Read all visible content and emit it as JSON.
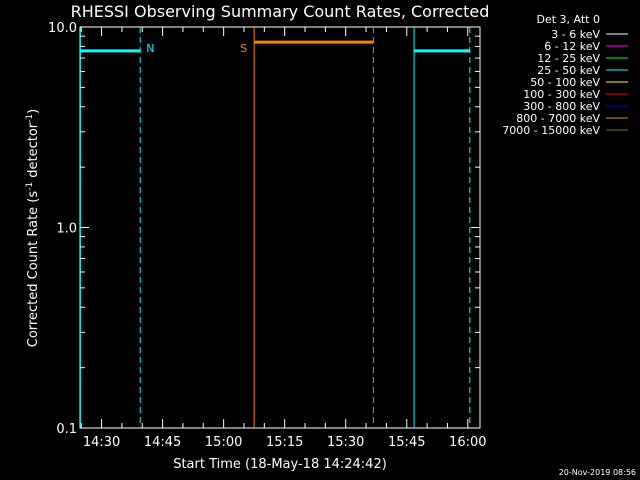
{
  "chart_data": {
    "type": "line",
    "title": "RHESSI Observing Summary Count Rates, Corrected",
    "xlabel": "Start Time (18-May-18 14:24:42)",
    "ylabel_main": "Corrected Count Rate (s",
    "ylabel_sup1": "-1",
    "ylabel_mid": " detector",
    "ylabel_sup2": "-1",
    "ylabel_end": ")",
    "yscale": "log",
    "ylim": [
      0.1,
      10.0
    ],
    "xlim_minutes": [
      864.7,
      963
    ],
    "x_ticks": [
      {
        "minutes": 870,
        "label": "14:30"
      },
      {
        "minutes": 885,
        "label": "14:45"
      },
      {
        "minutes": 900,
        "label": "15:00"
      },
      {
        "minutes": 915,
        "label": "15:15"
      },
      {
        "minutes": 930,
        "label": "15:30"
      },
      {
        "minutes": 945,
        "label": "15:45"
      },
      {
        "minutes": 960,
        "label": "16:00"
      }
    ],
    "y_ticks": [
      {
        "value": 10.0,
        "label": "10.0"
      },
      {
        "value": 1.0,
        "label": "1.0"
      },
      {
        "value": 0.1,
        "label": "0.1"
      }
    ],
    "legend_header": "Det 3, Att 0",
    "legend": [
      {
        "label": "3 - 6 keV",
        "color": "#ffffff"
      },
      {
        "label": "6 - 12 keV",
        "color": "#ff00ff"
      },
      {
        "label": "12 - 25 keV",
        "color": "#00ff00"
      },
      {
        "label": "25 - 50 keV",
        "color": "#00ffff"
      },
      {
        "label": "50 - 100 keV",
        "color": "#ffff00"
      },
      {
        "label": "100 - 300 keV",
        "color": "#ff0000"
      },
      {
        "label": "300 - 800 keV",
        "color": "#0000ff"
      },
      {
        "label": "800 - 7000 keV",
        "color": "#ff8000"
      },
      {
        "label": "7000 - 15000 keV",
        "color": "#808000"
      }
    ],
    "series": [
      {
        "color": "#00ffff",
        "segments": [
          [
            864.8,
            879.5,
            7.6
          ],
          [
            946.8,
            960.5,
            7.6
          ]
        ]
      },
      {
        "color": "#ff8000",
        "segments": [
          [
            907.5,
            936.8,
            8.4
          ]
        ]
      }
    ],
    "markers": [
      {
        "minutes": 864.8,
        "color": "#00ffff",
        "style": "solid"
      },
      {
        "minutes": 879.5,
        "color": "#00ffff",
        "style": "dashed",
        "label": "N"
      },
      {
        "minutes": 907.5,
        "color": "#ff8000",
        "style": "solid",
        "label": "S"
      },
      {
        "minutes": 936.8,
        "color": "#ff8000",
        "style": "dashed"
      },
      {
        "minutes": 946.8,
        "color": "#00ffff",
        "style": "solid"
      },
      {
        "minutes": 960.5,
        "color": "#00ffff",
        "style": "dashed"
      }
    ],
    "timestamp": "20-Nov-2019 08:56"
  }
}
